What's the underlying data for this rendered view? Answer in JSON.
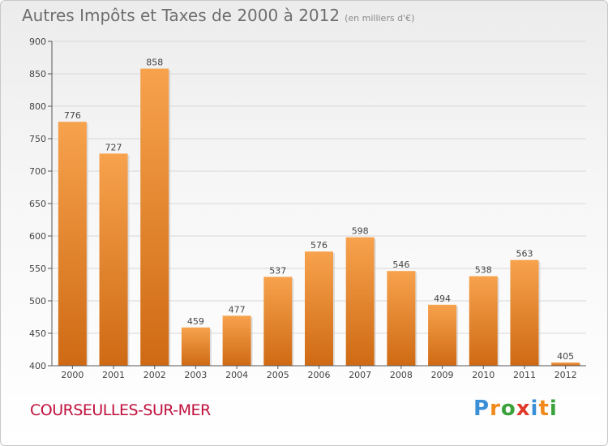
{
  "title": "Autres Impôts et Taxes de 2000 à 2012",
  "subtitle": "(en milliers d'€)",
  "commune": "COURSEULLES-SUR-MER",
  "logo": {
    "letters": [
      "P",
      "r",
      "o",
      "x",
      "i",
      "t",
      "i"
    ],
    "colors": [
      "#3a8fd6",
      "#f08a1c",
      "#3ba23b",
      "#e03a2a",
      "#3a8fd6",
      "#f08a1c",
      "#3ba23b"
    ]
  },
  "colors": {
    "bar_light": "#f7a24d",
    "bar_dark": "#cf6a14",
    "commune": "#c0103c",
    "grid": "#d8d8d8"
  },
  "chart_data": {
    "type": "bar",
    "title": "Autres Impôts et Taxes de 2000 à 2012",
    "subtitle": "(en milliers d'€)",
    "categories": [
      "2000",
      "2001",
      "2002",
      "2003",
      "2004",
      "2005",
      "2006",
      "2007",
      "2008",
      "2009",
      "2010",
      "2011",
      "2012"
    ],
    "values": [
      776,
      727,
      858,
      459,
      477,
      537,
      576,
      598,
      546,
      494,
      538,
      563,
      405
    ],
    "ylim": [
      400,
      900
    ],
    "yticks": [
      400,
      450,
      500,
      550,
      600,
      650,
      700,
      750,
      800,
      850,
      900
    ],
    "grid": true,
    "xlabel": "",
    "ylabel": ""
  }
}
